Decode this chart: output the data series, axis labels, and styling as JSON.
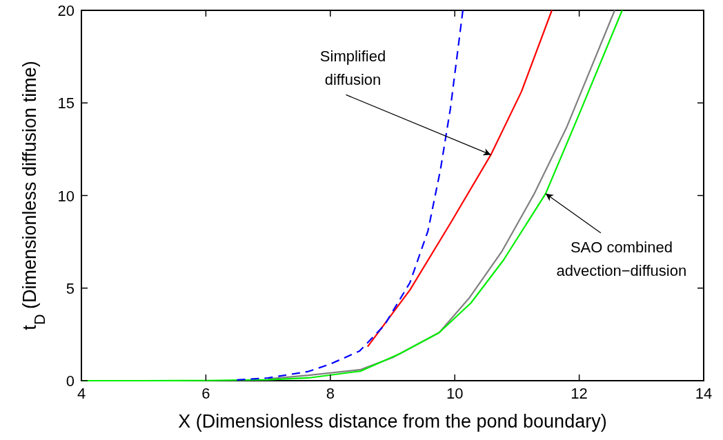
{
  "chart_data": {
    "type": "line",
    "xlabel": "X (Dimensionless distance from the pond boundary)",
    "ylabel": "t$_{D}$ (Dimensionless diffusion time)",
    "xlim": [
      4,
      14
    ],
    "ylim": [
      0,
      20
    ],
    "xticks": [
      4,
      6,
      8,
      10,
      12,
      14
    ],
    "yticks": [
      0,
      5,
      10,
      15,
      20
    ],
    "grid": false,
    "series": [
      {
        "color": "#808080",
        "line_style": "solid",
        "x": [
          7,
          7.65,
          8.49,
          9.0,
          9.75,
          10.24,
          10.76,
          11.27,
          11.8,
          12.57
        ],
        "values": [
          0.1,
          0.29,
          0.6,
          1.25,
          2.6,
          4.5,
          7.0,
          10.05,
          13.7,
          20
        ]
      },
      {
        "color": "#00ee00",
        "line_style": "solid",
        "x": [
          4,
          5,
          6,
          7,
          7.65,
          8.49,
          9.12,
          9.75,
          10.26,
          10.78,
          11.46,
          12.0,
          12.69
        ],
        "values": [
          0,
          0,
          0.01,
          0.05,
          0.15,
          0.52,
          1.46,
          2.6,
          4.2,
          6.5,
          10.1,
          14.4,
          20
        ]
      },
      {
        "color": "#ff0000",
        "line_style": "solid",
        "x": [
          8.6,
          9.28,
          9.93,
          10.58,
          11.07,
          11.56
        ],
        "values": [
          1.84,
          4.9,
          8.5,
          12.2,
          15.6,
          20
        ]
      },
      {
        "color": "#0000ff",
        "line_style": "dashed",
        "x": [
          6.5,
          7,
          7.65,
          8.0,
          8.47,
          8.87,
          9.28,
          9.57,
          9.77,
          9.93,
          10.13
        ],
        "values": [
          0.04,
          0.15,
          0.5,
          0.9,
          1.6,
          3.0,
          5.3,
          8.1,
          11.4,
          14.7,
          20
        ]
      }
    ],
    "annotations": [
      {
        "text": "Simplified\ndiffusion",
        "x": 10.58,
        "y": 12.2
      },
      {
        "text": "SAO combined\nadvection−diffusion",
        "x": 11.46,
        "y": 10.1
      }
    ]
  }
}
